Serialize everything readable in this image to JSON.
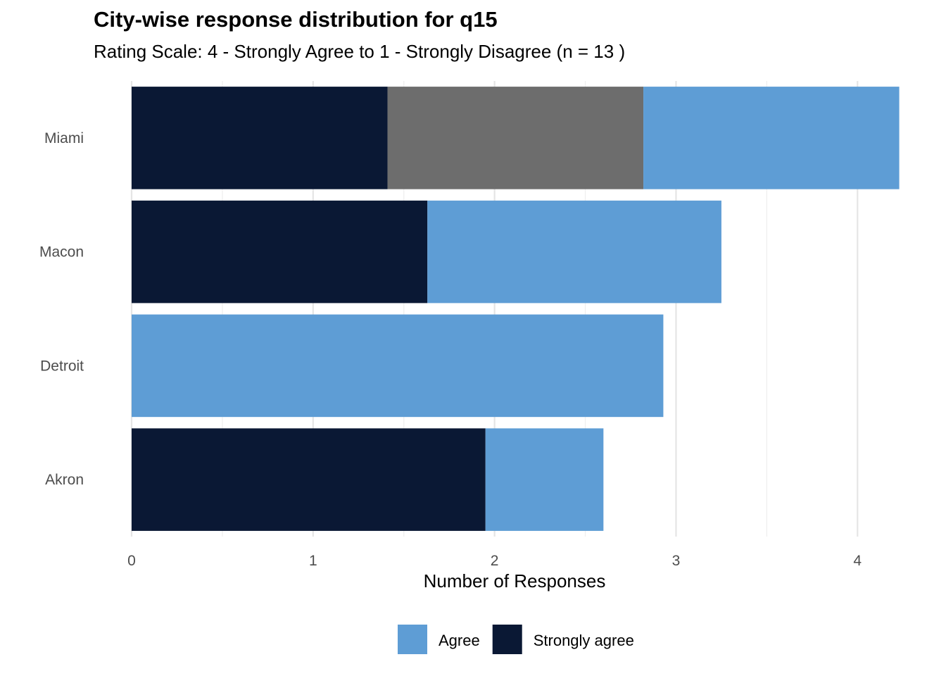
{
  "chart_data": {
    "type": "bar",
    "orientation": "horizontal",
    "stacked": true,
    "title": "City-wise response distribution for q15",
    "subtitle": "Rating Scale: 4 - Strongly Agree to 1 - Strongly Disagree (n = 13 )",
    "xlabel": "Number of Responses",
    "ylabel": "",
    "xlim": [
      0,
      4.22
    ],
    "xticks": [
      0,
      1,
      2,
      3,
      4
    ],
    "categories": [
      "Akron",
      "Detroit",
      "Macon",
      "Miami"
    ],
    "series": [
      {
        "name": "Strongly agree",
        "color": "#0a1834",
        "values": [
          1.95,
          0,
          1.63,
          1.41
        ]
      },
      {
        "name": "",
        "color": "#6d6d6d",
        "values": [
          0,
          0,
          0,
          1.41
        ]
      },
      {
        "name": "Agree",
        "color": "#5e9dd5",
        "values": [
          0.65,
          2.93,
          1.62,
          1.41
        ]
      }
    ],
    "legend": {
      "position": "bottom",
      "entries": [
        {
          "name": "Agree",
          "color": "#5e9dd5"
        },
        {
          "name": "Strongly agree",
          "color": "#0a1834"
        }
      ]
    },
    "grid": true
  }
}
